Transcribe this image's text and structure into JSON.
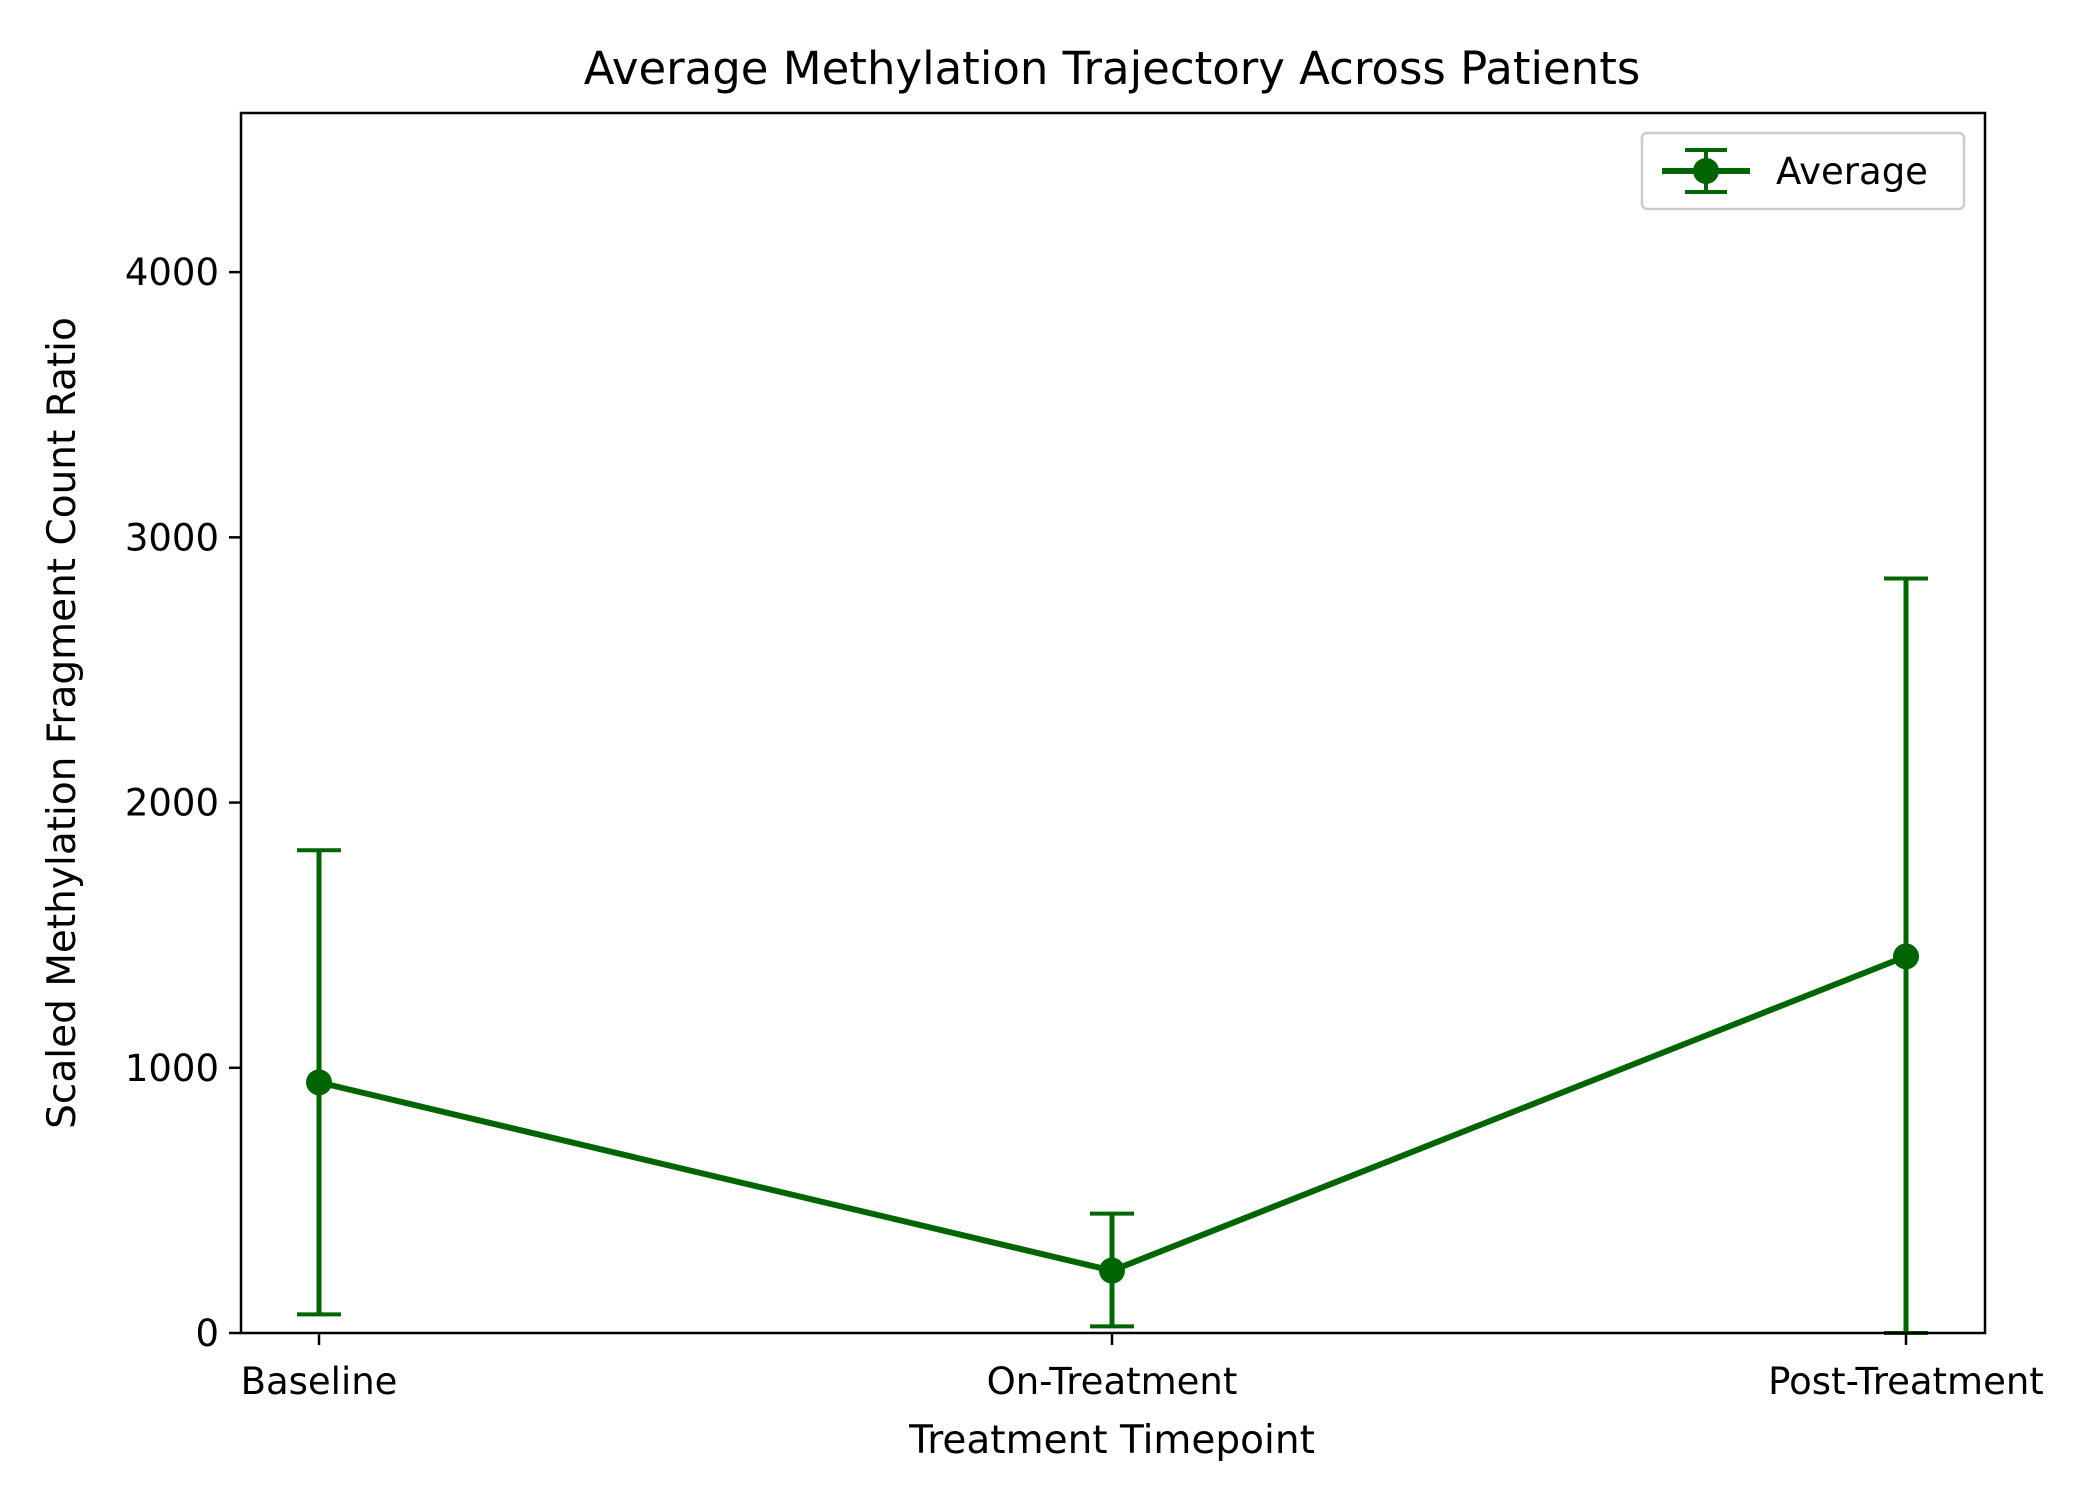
{
  "chart_data": {
    "type": "line",
    "title": "Average Methylation Trajectory Across Patients",
    "xlabel": "Treatment Timepoint",
    "ylabel": "Scaled Methylation Fragment Count Ratio",
    "categories": [
      "Baseline",
      "On-Treatment",
      "Post-Treatment"
    ],
    "series": [
      {
        "name": "Average",
        "values": [
          945,
          235,
          1420
        ],
        "error_low": [
          70,
          25,
          0
        ],
        "error_high": [
          1820,
          450,
          2845
        ]
      }
    ],
    "ylim": [
      0,
      4600
    ],
    "yticks": [
      0,
      1000,
      2000,
      3000,
      4000
    ],
    "ytick_labels": [
      "0",
      "1000",
      "2000",
      "3000",
      "4000"
    ],
    "grid": false,
    "legend_position": "top-right",
    "color": "#006400"
  }
}
